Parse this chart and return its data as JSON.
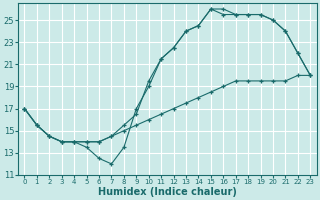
{
  "xlabel": "Humidex (Indice chaleur)",
  "background_color": "#cceae8",
  "grid_color": "#ffffff",
  "line_color": "#1a6b6b",
  "xlim": [
    -0.5,
    23.5
  ],
  "ylim": [
    11,
    26.5
  ],
  "xticks": [
    0,
    1,
    2,
    3,
    4,
    5,
    6,
    7,
    8,
    9,
    10,
    11,
    12,
    13,
    14,
    15,
    16,
    17,
    18,
    19,
    20,
    21,
    22,
    23
  ],
  "yticks": [
    11,
    13,
    15,
    17,
    19,
    21,
    23,
    25
  ],
  "line1_x": [
    0,
    1,
    2,
    3,
    4,
    5,
    6,
    7,
    8,
    9,
    10,
    11,
    12,
    13,
    14,
    15,
    16,
    17,
    18,
    19,
    20,
    21,
    22,
    23
  ],
  "line1_y": [
    17.0,
    15.5,
    14.5,
    14.0,
    14.0,
    14.0,
    14.0,
    14.5,
    15.0,
    15.5,
    16.0,
    16.5,
    17.0,
    17.5,
    18.0,
    18.5,
    19.0,
    19.5,
    19.5,
    19.5,
    19.5,
    19.5,
    20.0,
    20.0
  ],
  "line2_x": [
    0,
    1,
    2,
    3,
    4,
    5,
    6,
    7,
    8,
    9,
    10,
    11,
    12,
    13,
    14,
    15,
    16,
    17,
    18,
    19,
    20,
    21,
    22,
    23
  ],
  "line2_y": [
    17.0,
    15.5,
    14.5,
    14.0,
    14.0,
    14.0,
    14.0,
    14.5,
    15.5,
    16.5,
    19.5,
    21.5,
    22.5,
    24.0,
    24.5,
    26.0,
    26.0,
    25.5,
    25.5,
    25.5,
    25.0,
    24.0,
    22.0,
    20.0
  ],
  "line3_x": [
    0,
    1,
    2,
    3,
    4,
    5,
    6,
    7,
    8,
    9,
    10,
    11,
    12,
    13,
    14,
    15,
    16,
    17,
    18,
    19,
    20,
    21,
    22,
    23
  ],
  "line3_y": [
    17.0,
    15.5,
    14.5,
    14.0,
    14.0,
    13.5,
    12.5,
    12.0,
    13.5,
    17.0,
    19.0,
    21.5,
    22.5,
    24.0,
    24.5,
    26.0,
    25.5,
    25.5,
    25.5,
    25.5,
    25.0,
    24.0,
    22.0,
    20.0
  ]
}
